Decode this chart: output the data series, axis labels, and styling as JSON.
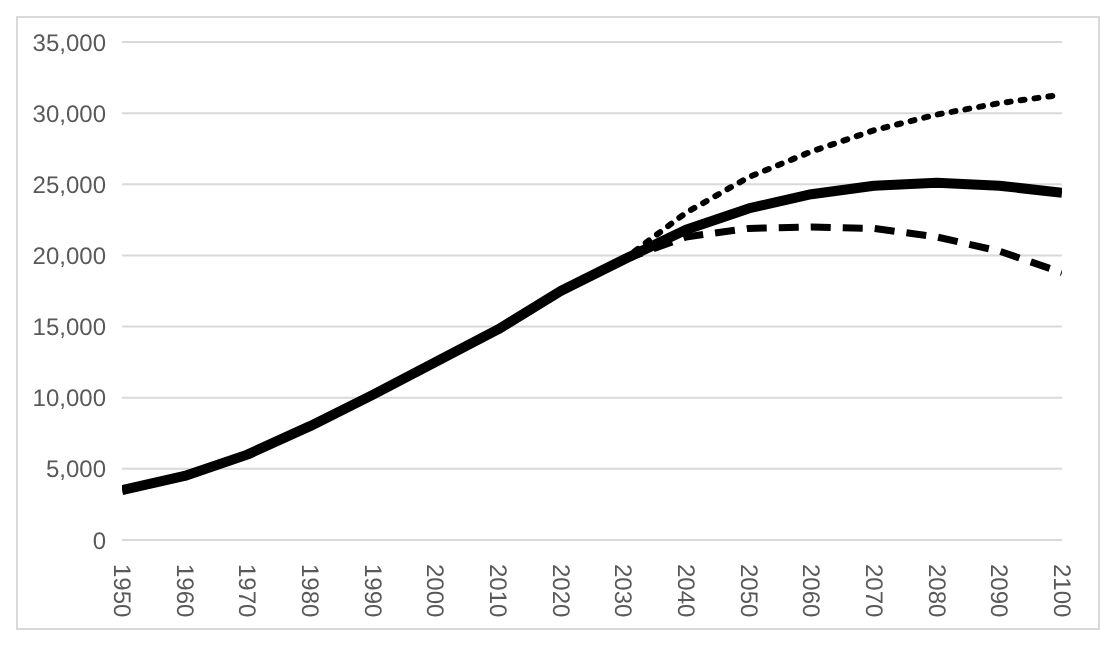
{
  "chart_data": {
    "type": "line",
    "xlim": [
      1950,
      2100
    ],
    "xticks": [
      1950,
      1960,
      1970,
      1980,
      1990,
      2000,
      2010,
      2020,
      2030,
      2040,
      2050,
      2060,
      2070,
      2080,
      2090,
      2100
    ],
    "ylim": [
      0,
      35000
    ],
    "yticks": [
      {
        "value": 0,
        "label": "0"
      },
      {
        "value": 5000,
        "label": "5,000"
      },
      {
        "value": 10000,
        "label": "10,000"
      },
      {
        "value": 15000,
        "label": "15,000"
      },
      {
        "value": 20000,
        "label": "20,000"
      },
      {
        "value": 25000,
        "label": "25,000"
      },
      {
        "value": 30000,
        "label": "30,000"
      },
      {
        "value": 35000,
        "label": "35,000"
      }
    ],
    "grid": "y",
    "marker": "none",
    "series": [
      {
        "color": "#000000",
        "line_style": "solid",
        "x": [
          1950,
          1960,
          1970,
          1980,
          1990,
          2000,
          2010,
          2020,
          2030,
          2040,
          2050,
          2060,
          2070,
          2080,
          2090,
          2100
        ],
        "values": [
          3500,
          4500,
          6000,
          8000,
          10200,
          12500,
          14800,
          17500,
          19700,
          21800,
          23300,
          24300,
          24900,
          25100,
          24900,
          24400
        ]
      },
      {
        "color": "#000000",
        "line_style": "dotted",
        "x": [
          2030,
          2040,
          2050,
          2060,
          2070,
          2080,
          2090,
          2100
        ],
        "values": [
          19700,
          23000,
          25500,
          27300,
          28800,
          29900,
          30700,
          31300
        ]
      },
      {
        "color": "#000000",
        "line_style": "dashed",
        "x": [
          2030,
          2040,
          2050,
          2060,
          2070,
          2080,
          2090,
          2100
        ],
        "values": [
          19700,
          21300,
          21900,
          22000,
          21900,
          21300,
          20300,
          18800
        ]
      }
    ]
  }
}
